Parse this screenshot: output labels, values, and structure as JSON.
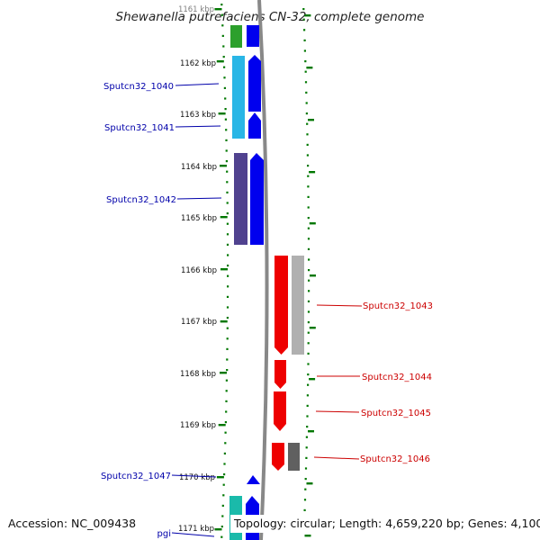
{
  "title": "Shewanella putrefaciens CN-32, complete genome",
  "footer": {
    "accession": "Accession: NC_009438",
    "summary": "Topology: circular; Length: 4,659,220 bp; Genes: 4,100"
  },
  "kbp_labels": [
    "1161 kbp",
    "1162 kbp",
    "1163 kbp",
    "1164 kbp",
    "1165 kbp",
    "1166 kbp",
    "1167 kbp",
    "1168 kbp",
    "1169 kbp",
    "1170 kbp",
    "1171 kbp"
  ],
  "colors": {
    "forward_label": "#0000aa",
    "reverse_label": "#cc0000",
    "tick": "#007700",
    "backbone": "#888888",
    "cds_forward": "#0000ee",
    "cds_reverse": "#ee0000"
  },
  "genes": [
    {
      "label": "Sputcn32_1040",
      "strand": "forward"
    },
    {
      "label": "Sputcn32_1041",
      "strand": "forward"
    },
    {
      "label": "Sputcn32_1042",
      "strand": "forward"
    },
    {
      "label": "Sputcn32_1043",
      "strand": "reverse"
    },
    {
      "label": "Sputcn32_1044",
      "strand": "reverse"
    },
    {
      "label": "Sputcn32_1045",
      "strand": "reverse"
    },
    {
      "label": "Sputcn32_1046",
      "strand": "reverse"
    },
    {
      "label": "Sputcn32_1047",
      "strand": "forward"
    },
    {
      "label": "pgi",
      "strand": "forward"
    }
  ]
}
